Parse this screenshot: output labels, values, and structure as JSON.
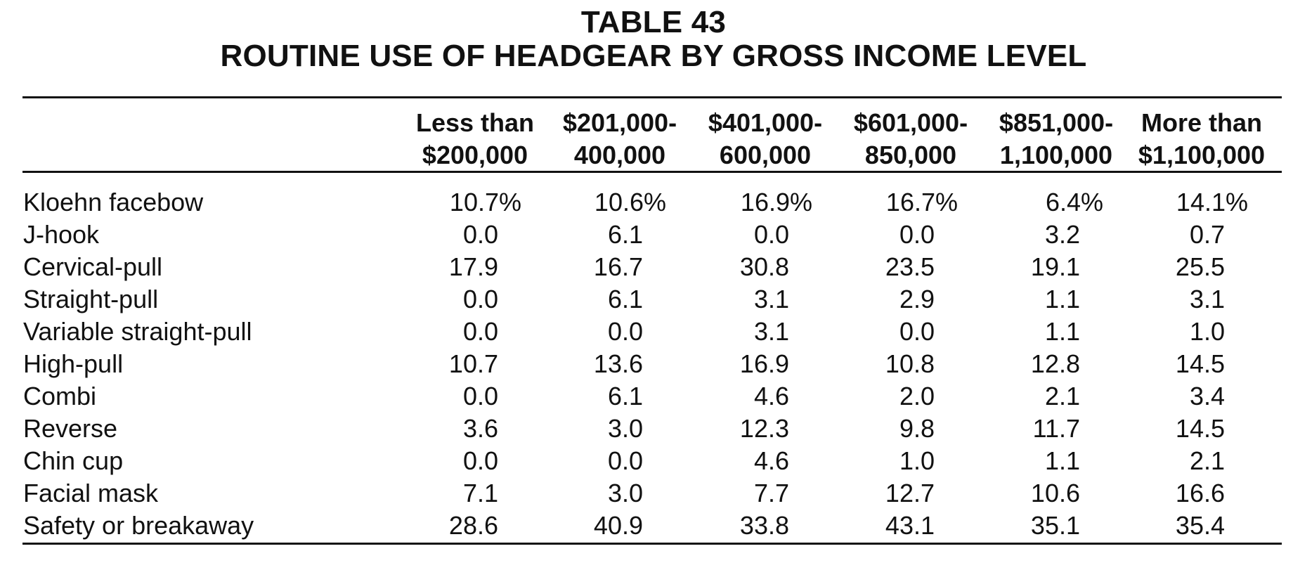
{
  "table": {
    "title_line1": "TABLE 43",
    "title_line2": "ROUTINE USE OF HEADGEAR BY GROSS INCOME LEVEL",
    "columns": [
      {
        "line1": "Less than",
        "line2": "$200,000"
      },
      {
        "line1": "$201,000-",
        "line2": "400,000"
      },
      {
        "line1": "$401,000-",
        "line2": "600,000"
      },
      {
        "line1": "$601,000-",
        "line2": "850,000"
      },
      {
        "line1": "$851,000-",
        "line2": "1,100,000"
      },
      {
        "line1": "More than",
        "line2": "$1,100,000"
      }
    ],
    "rows": [
      {
        "label": "Kloehn facebow",
        "values": [
          "10.7%",
          "10.6%",
          "16.9%",
          "16.7%",
          "6.4%",
          "14.1%"
        ]
      },
      {
        "label": "J-hook",
        "values": [
          "0.0",
          "6.1",
          "0.0",
          "0.0",
          "3.2",
          "0.7"
        ]
      },
      {
        "label": "Cervical-pull",
        "values": [
          "17.9",
          "16.7",
          "30.8",
          "23.5",
          "19.1",
          "25.5"
        ]
      },
      {
        "label": "Straight-pull",
        "values": [
          "0.0",
          "6.1",
          "3.1",
          "2.9",
          "1.1",
          "3.1"
        ]
      },
      {
        "label": "Variable straight-pull",
        "values": [
          "0.0",
          "0.0",
          "3.1",
          "0.0",
          "1.1",
          "1.0"
        ]
      },
      {
        "label": "High-pull",
        "values": [
          "10.7",
          "13.6",
          "16.9",
          "10.8",
          "12.8",
          "14.5"
        ]
      },
      {
        "label": "Combi",
        "values": [
          "0.0",
          "6.1",
          "4.6",
          "2.0",
          "2.1",
          "3.4"
        ]
      },
      {
        "label": "Reverse",
        "values": [
          "3.6",
          "3.0",
          "12.3",
          "9.8",
          "11.7",
          "14.5"
        ]
      },
      {
        "label": "Chin cup",
        "values": [
          "0.0",
          "0.0",
          "4.6",
          "1.0",
          "1.1",
          "2.1"
        ]
      },
      {
        "label": "Facial mask",
        "values": [
          "7.1",
          "3.0",
          "7.7",
          "12.7",
          "10.6",
          "16.6"
        ]
      },
      {
        "label": "Safety or breakaway",
        "values": [
          "28.6",
          "40.9",
          "33.8",
          "43.1",
          "35.1",
          "35.4"
        ]
      }
    ]
  }
}
